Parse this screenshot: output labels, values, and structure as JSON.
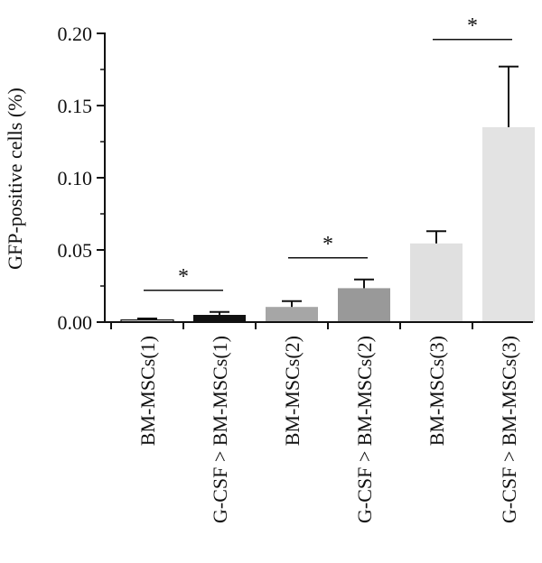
{
  "chart_data": {
    "type": "bar",
    "title": "",
    "xlabel": "",
    "ylabel": "GFP-positive cells (%)",
    "ylim": [
      0,
      0.2
    ],
    "yticks": [
      "0.00",
      "0.05",
      "0.10",
      "0.15",
      "0.20"
    ],
    "categories": [
      "BM-MSCs(1)",
      "G-CSF > BM-MSCs(1)",
      "BM-MSCs(2)",
      "G-CSF > BM-MSCs(2)",
      "BM-MSCs(3)",
      "G-CSF > BM-MSCs(3)"
    ],
    "values": [
      0.0015,
      0.005,
      0.0105,
      0.0235,
      0.0545,
      0.135
    ],
    "error_upper": [
      0.0025,
      0.007,
      0.0145,
      0.0295,
      0.063,
      0.177
    ],
    "bar_colors": [
      "#eeeeee",
      "#111111",
      "#a6a6a6",
      "#999999",
      "#e0e0e0",
      "#e3e3e3"
    ],
    "significance": [
      {
        "pair": [
          0,
          1
        ],
        "label": "*"
      },
      {
        "pair": [
          2,
          3
        ],
        "label": "*"
      },
      {
        "pair": [
          4,
          5
        ],
        "label": "*"
      }
    ],
    "grid": false,
    "legend": "none"
  }
}
